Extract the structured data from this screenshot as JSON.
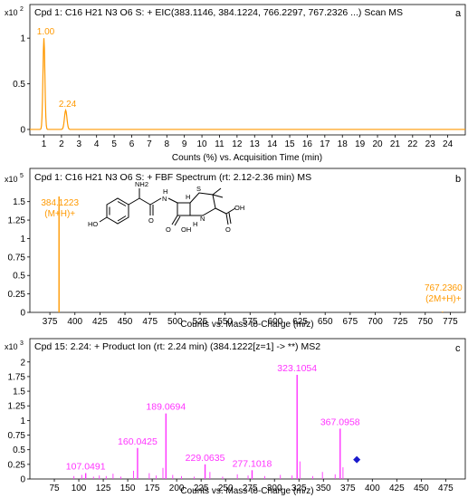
{
  "chart_data": [
    {
      "type": "line",
      "panel_letter": "a",
      "title": "Cpd 1: C16 H21 N3 O6 S: + EIC(383.1146, 384.1224, 766.2297, 767.2326 ...) Scan MS",
      "y_exponent_label": "x10",
      "y_exponent": "2",
      "xlabel": "Counts (%) vs. Acquisition Time (min)",
      "xlim": [
        0.2,
        25.0
      ],
      "ylim": [
        -0.06,
        1.18
      ],
      "x_ticks": [
        1,
        2,
        3,
        4,
        5,
        6,
        7,
        8,
        9,
        10,
        11,
        12,
        13,
        14,
        15,
        16,
        17,
        18,
        19,
        20,
        21,
        22,
        23,
        24
      ],
      "y_ticks": [
        0,
        0.5,
        1
      ],
      "y_tick_labels": [
        "0",
        "0.5",
        "1"
      ],
      "peaks": [
        {
          "rt": 1.0,
          "height": 1.0,
          "width": 0.055,
          "label": "1.00"
        },
        {
          "rt": 2.24,
          "height": 0.21,
          "width": 0.07,
          "label": "2.24"
        }
      ],
      "series_color": "#ff9900"
    },
    {
      "type": "bar",
      "panel_letter": "b",
      "title": "Cpd 1: C16 H21 N3 O6 S: + FBF Spectrum (rt: 2.12-2.36 min) MS",
      "y_exponent_label": "x10",
      "y_exponent": "5",
      "xlabel": "Counts vs. Mass-to-Charge (m/z)",
      "xlim": [
        355,
        790
      ],
      "ylim": [
        0,
        1.68
      ],
      "x_ticks": [
        375,
        400,
        425,
        450,
        475,
        500,
        525,
        550,
        575,
        600,
        625,
        650,
        675,
        700,
        725,
        750,
        775
      ],
      "y_ticks": [
        0,
        0.25,
        0.5,
        0.75,
        1,
        1.25,
        1.5
      ],
      "y_tick_labels": [
        "0",
        "0.25",
        "0.5",
        "0.75",
        "1",
        "1.25",
        "1.5"
      ],
      "peaks": [
        {
          "mz": 384.1223,
          "intensity": 1.57,
          "label": "384.1223",
          "label2": "(M+H)+"
        },
        {
          "mz": 767.236,
          "intensity": 0.01,
          "label": "767.2360",
          "label2": "(2M+H)+"
        }
      ],
      "series_color": "#ff9900",
      "structure": {
        "atoms": [
          "NH2",
          "O",
          "H",
          "N",
          "S",
          "HO",
          "O",
          "OH",
          "N",
          "O",
          "OH",
          "H",
          "H"
        ]
      }
    },
    {
      "type": "bar",
      "panel_letter": "c",
      "title": "Cpd 15: 2.24: + Product Ion (rt: 2.24 min) (384.1222[z=1] -> **) MS2",
      "y_exponent_label": "x10",
      "y_exponent": "3",
      "xlabel": "Counts vs. Mass-to-Charge (m/z)",
      "xlim": [
        50,
        495
      ],
      "ylim": [
        0,
        2.12
      ],
      "x_ticks": [
        75,
        100,
        125,
        150,
        175,
        200,
        225,
        250,
        275,
        300,
        325,
        350,
        375,
        400,
        425,
        450,
        475
      ],
      "y_ticks": [
        0,
        0.25,
        0.5,
        0.75,
        1,
        1.25,
        1.5,
        1.75,
        2
      ],
      "y_tick_labels": [
        "0",
        "0.25",
        "0.5",
        "0.75",
        "1",
        "1.25",
        "1.5",
        "1.75",
        "2"
      ],
      "peaks": [
        {
          "mz": 323.1054,
          "intensity": 1.78,
          "label": "323.1054"
        },
        {
          "mz": 189.0694,
          "intensity": 1.12,
          "label": "189.0694"
        },
        {
          "mz": 367.0958,
          "intensity": 0.86,
          "label": "367.0958"
        },
        {
          "mz": 160.0425,
          "intensity": 0.53,
          "label": "160.0425"
        },
        {
          "mz": 229.0635,
          "intensity": 0.25,
          "label": "229.0635"
        },
        {
          "mz": 277.1018,
          "intensity": 0.15,
          "label": "277.1018"
        },
        {
          "mz": 107.0491,
          "intensity": 0.1,
          "label": "107.0491"
        },
        {
          "mz": 95,
          "intensity": 0.05
        },
        {
          "mz": 103,
          "intensity": 0.07
        },
        {
          "mz": 115,
          "intensity": 0.04
        },
        {
          "mz": 121,
          "intensity": 0.06
        },
        {
          "mz": 128,
          "intensity": 0.05
        },
        {
          "mz": 135,
          "intensity": 0.09
        },
        {
          "mz": 143,
          "intensity": 0.04
        },
        {
          "mz": 156,
          "intensity": 0.14
        },
        {
          "mz": 172,
          "intensity": 0.1
        },
        {
          "mz": 179,
          "intensity": 0.06
        },
        {
          "mz": 186,
          "intensity": 0.19
        },
        {
          "mz": 196,
          "intensity": 0.07
        },
        {
          "mz": 205,
          "intensity": 0.05
        },
        {
          "mz": 218,
          "intensity": 0.04
        },
        {
          "mz": 234,
          "intensity": 0.12
        },
        {
          "mz": 247,
          "intensity": 0.04
        },
        {
          "mz": 262,
          "intensity": 0.08
        },
        {
          "mz": 273,
          "intensity": 0.06
        },
        {
          "mz": 290,
          "intensity": 0.05
        },
        {
          "mz": 306,
          "intensity": 0.07
        },
        {
          "mz": 318,
          "intensity": 0.06
        },
        {
          "mz": 326,
          "intensity": 0.3
        },
        {
          "mz": 339,
          "intensity": 0.05
        },
        {
          "mz": 349,
          "intensity": 0.12
        },
        {
          "mz": 362,
          "intensity": 0.08
        },
        {
          "mz": 370,
          "intensity": 0.2
        }
      ],
      "precursor_marker": {
        "mz": 384.1222,
        "intensity": 0.33,
        "color": "#1a1acc"
      },
      "series_color": "#ff33ff"
    }
  ]
}
